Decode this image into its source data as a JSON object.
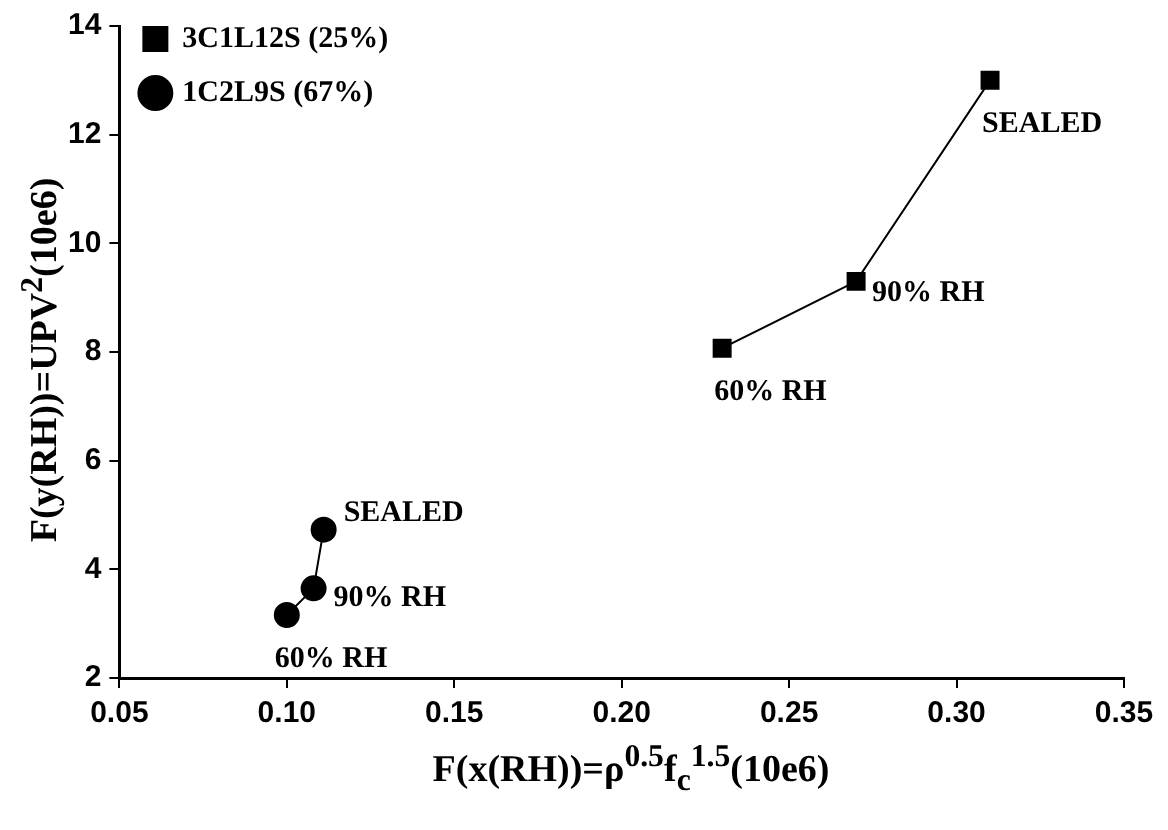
{
  "chart_data": {
    "type": "line",
    "xlabel": "F(x(RH))=ρ$^{0.5}$f$_{c}$$^{1.5}$(10e6)",
    "ylabel": "F(y(RH))=UPV$^{2}$(10e6)",
    "xlim": [
      0.05,
      0.35
    ],
    "xticks": [
      {
        "value": 0.05,
        "label": "0.05"
      },
      {
        "value": 0.1,
        "label": "0.10"
      },
      {
        "value": 0.15,
        "label": "0.15"
      },
      {
        "value": 0.2,
        "label": "0.20"
      },
      {
        "value": 0.25,
        "label": "0.25"
      },
      {
        "value": 0.3,
        "label": "0.30"
      },
      {
        "value": 0.35,
        "label": "0.35"
      }
    ],
    "ylim": [
      2,
      14
    ],
    "yticks": [
      2,
      4,
      6,
      8,
      10,
      12,
      14
    ],
    "grid": false,
    "legend": "top left",
    "series": [
      {
        "name": "3C1L12S (25%)",
        "color": "#000000",
        "marker": "square",
        "x": [
          0.23,
          0.27,
          0.31
        ],
        "values": [
          8.07,
          9.3,
          13.0
        ]
      },
      {
        "name": "1C2L9S (67%)",
        "color": "#000000",
        "marker": "circle",
        "x": [
          0.1,
          0.108,
          0.111
        ],
        "values": [
          3.16,
          3.65,
          4.73
        ]
      }
    ],
    "annotations": [
      {
        "text": "60% RH",
        "x": 0.23,
        "y": 8.07
      },
      {
        "text": "90% RH",
        "x": 0.27,
        "y": 9.3
      },
      {
        "text": "SEALED",
        "x": 0.31,
        "y": 13.0
      },
      {
        "text": "60% RH",
        "x": 0.1,
        "y": 3.16
      },
      {
        "text": "90% RH",
        "x": 0.108,
        "y": 3.65
      },
      {
        "text": "SEALED",
        "x": 0.111,
        "y": 4.73
      }
    ]
  }
}
